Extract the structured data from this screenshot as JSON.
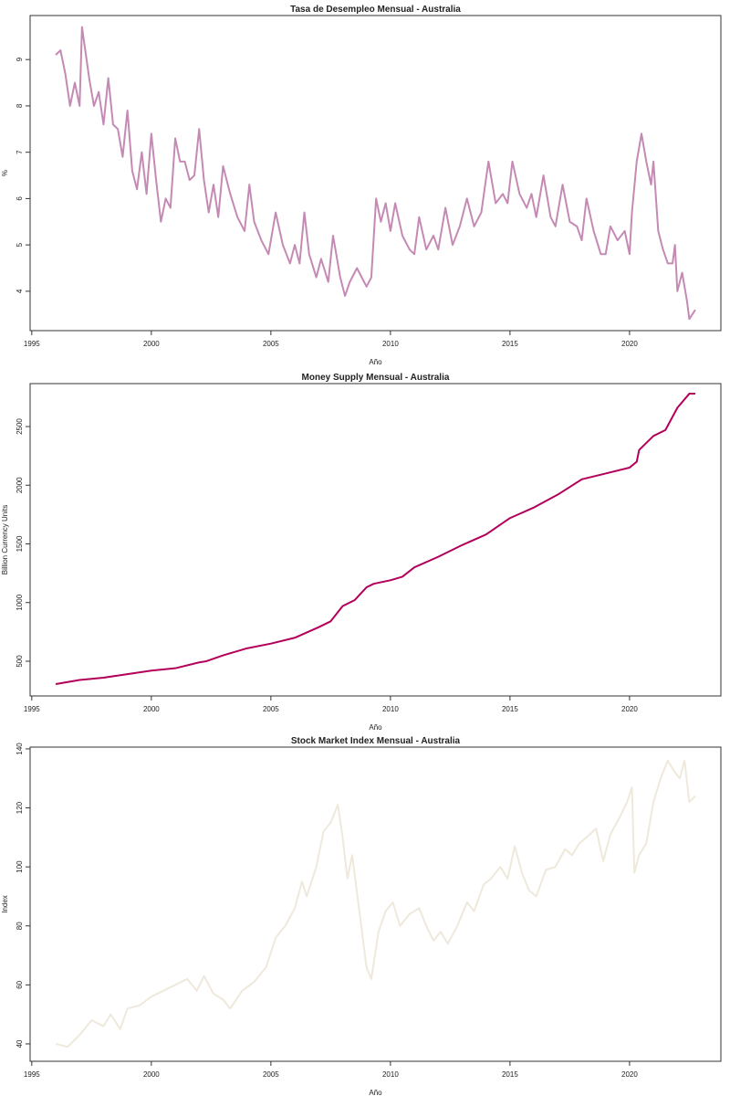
{
  "chart_data": [
    {
      "type": "line",
      "title": "Tasa de Desempleo Mensual - Australia",
      "x_label": "Año",
      "y_label": "%",
      "xlim": [
        1994.93,
        2023.82
      ],
      "xticks": [
        1995,
        2000,
        2005,
        2010,
        2015,
        2020
      ],
      "ylim": [
        3.15,
        9.95
      ],
      "yticks": [
        4,
        5,
        6,
        7,
        8,
        9
      ],
      "series": [
        {
          "name": "Tasa de Desempleo",
          "color": "#c48ab4",
          "x": [
            1996.0,
            1996.2,
            1996.4,
            1996.6,
            1996.8,
            1997.0,
            1997.1,
            1997.4,
            1997.6,
            1997.8,
            1998.0,
            1998.2,
            1998.4,
            1998.6,
            1998.8,
            1999.0,
            1999.2,
            1999.4,
            1999.6,
            1999.8,
            2000.0,
            2000.2,
            2000.4,
            2000.6,
            2000.8,
            2001.0,
            2001.2,
            2001.4,
            2001.6,
            2001.8,
            2002.0,
            2002.2,
            2002.4,
            2002.6,
            2002.8,
            2003.0,
            2003.3,
            2003.6,
            2003.9,
            2004.1,
            2004.3,
            2004.6,
            2004.9,
            2005.2,
            2005.5,
            2005.8,
            2006.0,
            2006.2,
            2006.4,
            2006.6,
            2006.9,
            2007.1,
            2007.4,
            2007.6,
            2007.9,
            2008.1,
            2008.3,
            2008.6,
            2008.9,
            2009.0,
            2009.2,
            2009.4,
            2009.6,
            2009.8,
            2010.0,
            2010.2,
            2010.5,
            2010.8,
            2011.0,
            2011.2,
            2011.5,
            2011.8,
            2012.0,
            2012.3,
            2012.6,
            2012.9,
            2013.2,
            2013.5,
            2013.8,
            2014.1,
            2014.4,
            2014.7,
            2014.9,
            2015.1,
            2015.4,
            2015.7,
            2015.9,
            2016.1,
            2016.4,
            2016.7,
            2016.9,
            2017.2,
            2017.5,
            2017.8,
            2018.0,
            2018.2,
            2018.5,
            2018.8,
            2019.0,
            2019.2,
            2019.5,
            2019.8,
            2020.0,
            2020.1,
            2020.3,
            2020.5,
            2020.7,
            2020.9,
            2021.0,
            2021.2,
            2021.4,
            2021.6,
            2021.8,
            2021.9,
            2022.0,
            2022.2,
            2022.4,
            2022.5,
            2022.75
          ],
          "values": [
            9.1,
            9.2,
            8.7,
            8.0,
            8.5,
            8.0,
            9.7,
            8.6,
            8.0,
            8.3,
            7.6,
            8.6,
            7.6,
            7.5,
            6.9,
            7.9,
            6.6,
            6.2,
            7.0,
            6.1,
            7.4,
            6.4,
            5.5,
            6.0,
            5.8,
            7.3,
            6.8,
            6.8,
            6.4,
            6.5,
            7.5,
            6.4,
            5.7,
            6.3,
            5.6,
            6.7,
            6.1,
            5.6,
            5.3,
            6.3,
            5.5,
            5.1,
            4.8,
            5.7,
            5.0,
            4.6,
            5.0,
            4.6,
            5.7,
            4.8,
            4.3,
            4.7,
            4.2,
            5.2,
            4.3,
            3.9,
            4.2,
            4.5,
            4.2,
            4.1,
            4.3,
            6.0,
            5.5,
            5.9,
            5.3,
            5.9,
            5.2,
            4.9,
            4.8,
            5.6,
            4.9,
            5.2,
            4.9,
            5.8,
            5.0,
            5.4,
            6.0,
            5.4,
            5.7,
            6.8,
            5.9,
            6.1,
            5.9,
            6.8,
            6.1,
            5.8,
            6.1,
            5.6,
            6.5,
            5.6,
            5.4,
            6.3,
            5.5,
            5.4,
            5.1,
            6.0,
            5.3,
            4.8,
            4.8,
            5.4,
            5.1,
            5.3,
            4.8,
            5.7,
            6.8,
            7.4,
            6.8,
            6.3,
            6.8,
            5.3,
            4.9,
            4.6,
            4.6,
            5.0,
            4.0,
            4.4,
            3.8,
            3.4,
            3.6
          ]
        }
      ]
    },
    {
      "type": "line",
      "title": "Money Supply Mensual - Australia",
      "x_label": "Año",
      "y_label": "Billion Currency Units",
      "xlim": [
        1994.93,
        2023.82
      ],
      "xticks": [
        1995,
        2000,
        2005,
        2010,
        2015,
        2020
      ],
      "ylim": [
        204,
        2866
      ],
      "yticks": [
        500,
        1000,
        1500,
        2000,
        2500
      ],
      "series": [
        {
          "name": "Money Supply",
          "color": "#b3005a",
          "x": [
            1996.0,
            1997.0,
            1998.0,
            1999.0,
            2000.0,
            2001.0,
            2002.0,
            2002.3,
            2003.0,
            2004.0,
            2005.0,
            2006.0,
            2007.0,
            2007.5,
            2008.0,
            2008.5,
            2009.0,
            2009.3,
            2010.0,
            2010.5,
            2011.0,
            2012.0,
            2013.0,
            2014.0,
            2015.0,
            2016.0,
            2017.0,
            2018.0,
            2019.0,
            2020.0,
            2020.3,
            2020.4,
            2021.0,
            2021.5,
            2022.0,
            2022.5,
            2022.75
          ],
          "values": [
            305,
            340,
            360,
            390,
            420,
            440,
            490,
            500,
            550,
            610,
            650,
            700,
            790,
            840,
            970,
            1020,
            1130,
            1160,
            1190,
            1220,
            1300,
            1390,
            1490,
            1580,
            1720,
            1810,
            1920,
            2050,
            2100,
            2150,
            2200,
            2300,
            2420,
            2470,
            2660,
            2780,
            2780
          ]
        }
      ]
    },
    {
      "type": "line",
      "title": "Stock Market Index Mensual - Australia",
      "x_label": "Año",
      "y_label": "Index",
      "xlim": [
        1994.93,
        2023.82
      ],
      "xticks": [
        1995,
        2000,
        2005,
        2010,
        2015,
        2020
      ],
      "ylim": [
        34.1,
        140.6
      ],
      "yticks": [
        40,
        60,
        80,
        100,
        120,
        140
      ],
      "series": [
        {
          "name": "Stock Market Index",
          "color": "#efe9dc",
          "x": [
            1996.0,
            1996.5,
            1997.0,
            1997.5,
            1998.0,
            1998.3,
            1998.7,
            1999.0,
            1999.5,
            2000.0,
            2000.5,
            2001.0,
            2001.5,
            2001.9,
            2002.2,
            2002.6,
            2003.0,
            2003.3,
            2003.8,
            2004.3,
            2004.8,
            2005.2,
            2005.6,
            2006.0,
            2006.3,
            2006.5,
            2006.9,
            2007.2,
            2007.5,
            2007.8,
            2008.0,
            2008.2,
            2008.4,
            2008.7,
            2009.0,
            2009.2,
            2009.5,
            2009.8,
            2010.1,
            2010.4,
            2010.8,
            2011.2,
            2011.5,
            2011.8,
            2012.1,
            2012.4,
            2012.8,
            2013.2,
            2013.5,
            2013.9,
            2014.2,
            2014.6,
            2014.9,
            2015.2,
            2015.5,
            2015.8,
            2016.1,
            2016.5,
            2016.9,
            2017.3,
            2017.6,
            2017.9,
            2018.2,
            2018.6,
            2018.9,
            2019.2,
            2019.6,
            2019.9,
            2020.1,
            2020.2,
            2020.4,
            2020.7,
            2021.0,
            2021.3,
            2021.6,
            2021.9,
            2022.1,
            2022.3,
            2022.5,
            2022.75
          ],
          "values": [
            40,
            39,
            43,
            48,
            46,
            50,
            45,
            52,
            53,
            56,
            58,
            60,
            62,
            58,
            63,
            57,
            55,
            52,
            58,
            61,
            66,
            76,
            80,
            86,
            95,
            90,
            100,
            112,
            115,
            121,
            110,
            96,
            104,
            85,
            66,
            62,
            78,
            85,
            88,
            80,
            84,
            86,
            80,
            75,
            78,
            74,
            80,
            88,
            85,
            94,
            96,
            100,
            96,
            107,
            98,
            92,
            90,
            99,
            100,
            106,
            104,
            108,
            110,
            113,
            102,
            111,
            117,
            122,
            127,
            98,
            104,
            108,
            122,
            130,
            136,
            132,
            130,
            136,
            122,
            124
          ]
        }
      ]
    }
  ]
}
